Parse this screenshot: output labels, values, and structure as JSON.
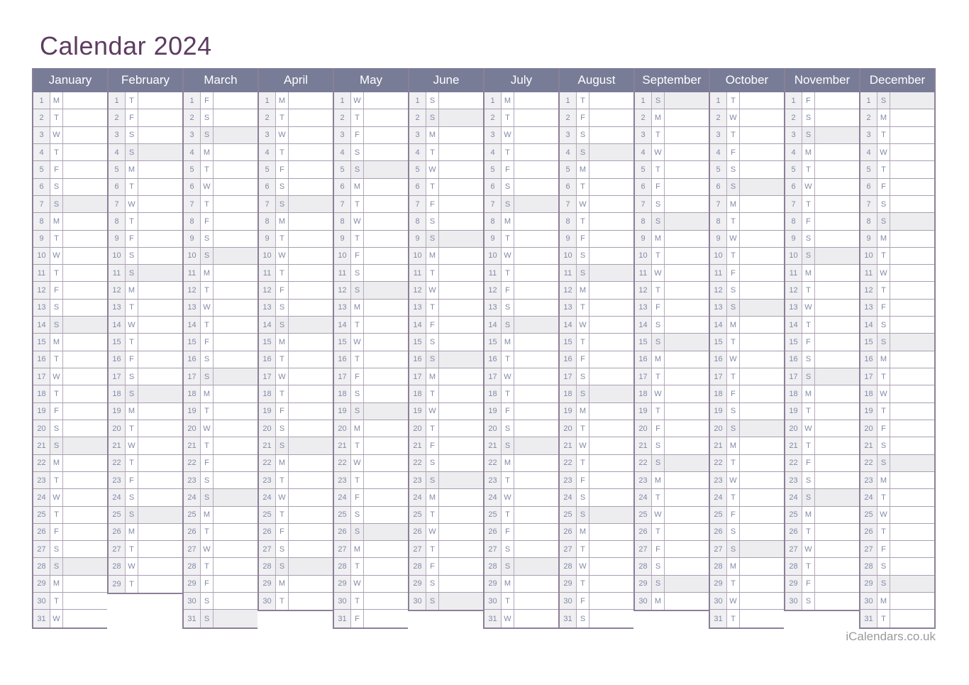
{
  "page": {
    "title": "Calendar 2024",
    "footer": "iCalendars.co.uk"
  },
  "colors": {
    "title_text": "#5d3c60",
    "month_header_bg": "#787c97",
    "month_header_text": "#ffffff",
    "day_text": "#8289a9",
    "number_cell_bg": "#f0eff1",
    "sunday_shade": "#ededef",
    "grid_border_dark": "#8b8098",
    "grid_border_mid": "#b3abbe",
    "grid_border_light": "#a89fb2",
    "footer_text": "#9b9b9b"
  },
  "calendar": {
    "year": 2024,
    "months": [
      {
        "name": "January",
        "days": 31,
        "dows": "MTWTFSSMTWTFSSMTWTFSSMTWTFSSMTW",
        "sundays": [
          7,
          14,
          21,
          28
        ]
      },
      {
        "name": "February",
        "days": 29,
        "dows": "TFSSMTWTFSSMTWTFSSMTWTFSSMTWT",
        "sundays": [
          4,
          11,
          18,
          25
        ]
      },
      {
        "name": "March",
        "days": 31,
        "dows": "FSSMTWTFSSMTWTFSSMTWTFSSMTWTFSS",
        "sundays": [
          3,
          10,
          17,
          24,
          31
        ]
      },
      {
        "name": "April",
        "days": 30,
        "dows": "MTWTFSSMTWTFSSMTWTFSSMTWTFSSMT",
        "sundays": [
          7,
          14,
          21,
          28
        ]
      },
      {
        "name": "May",
        "days": 31,
        "dows": "WTFSSMTWTFSSMTWTFSSMTWTFSSMTWTF",
        "sundays": [
          5,
          12,
          19,
          26
        ]
      },
      {
        "name": "June",
        "days": 30,
        "dows": "SSMTWTFSSMTWTFSSMTWTFSSMTWTFSS",
        "sundays": [
          2,
          9,
          16,
          23,
          30
        ]
      },
      {
        "name": "July",
        "days": 31,
        "dows": "MTWTFSSMTWTFSSMTWTFSSMTWTFSSMTW",
        "sundays": [
          7,
          14,
          21,
          28
        ]
      },
      {
        "name": "August",
        "days": 31,
        "dows": "TFSSMTWTFSSMTWTFSSMTWTFSSMTWTFS",
        "sundays": [
          4,
          11,
          18,
          25
        ]
      },
      {
        "name": "September",
        "days": 30,
        "dows": "SMTWTFSSMTWTFSSMTWTFSSMTWTFSSM",
        "sundays": [
          1,
          8,
          15,
          22,
          29
        ]
      },
      {
        "name": "October",
        "days": 31,
        "dows": "TWTFSSMTWTFSSMTWTFSSMTWTFSSMTWT",
        "sundays": [
          6,
          13,
          20,
          27
        ]
      },
      {
        "name": "November",
        "days": 30,
        "dows": "FSSMTWTFSSMTWTFSSMTWTFSSMTWTFS",
        "sundays": [
          3,
          10,
          17,
          24
        ]
      },
      {
        "name": "December",
        "days": 31,
        "dows": "SMTWTFSSMTWTFSSMTWTFSSMTWTFSSMT",
        "sundays": [
          1,
          8,
          15,
          22,
          29
        ]
      }
    ]
  }
}
